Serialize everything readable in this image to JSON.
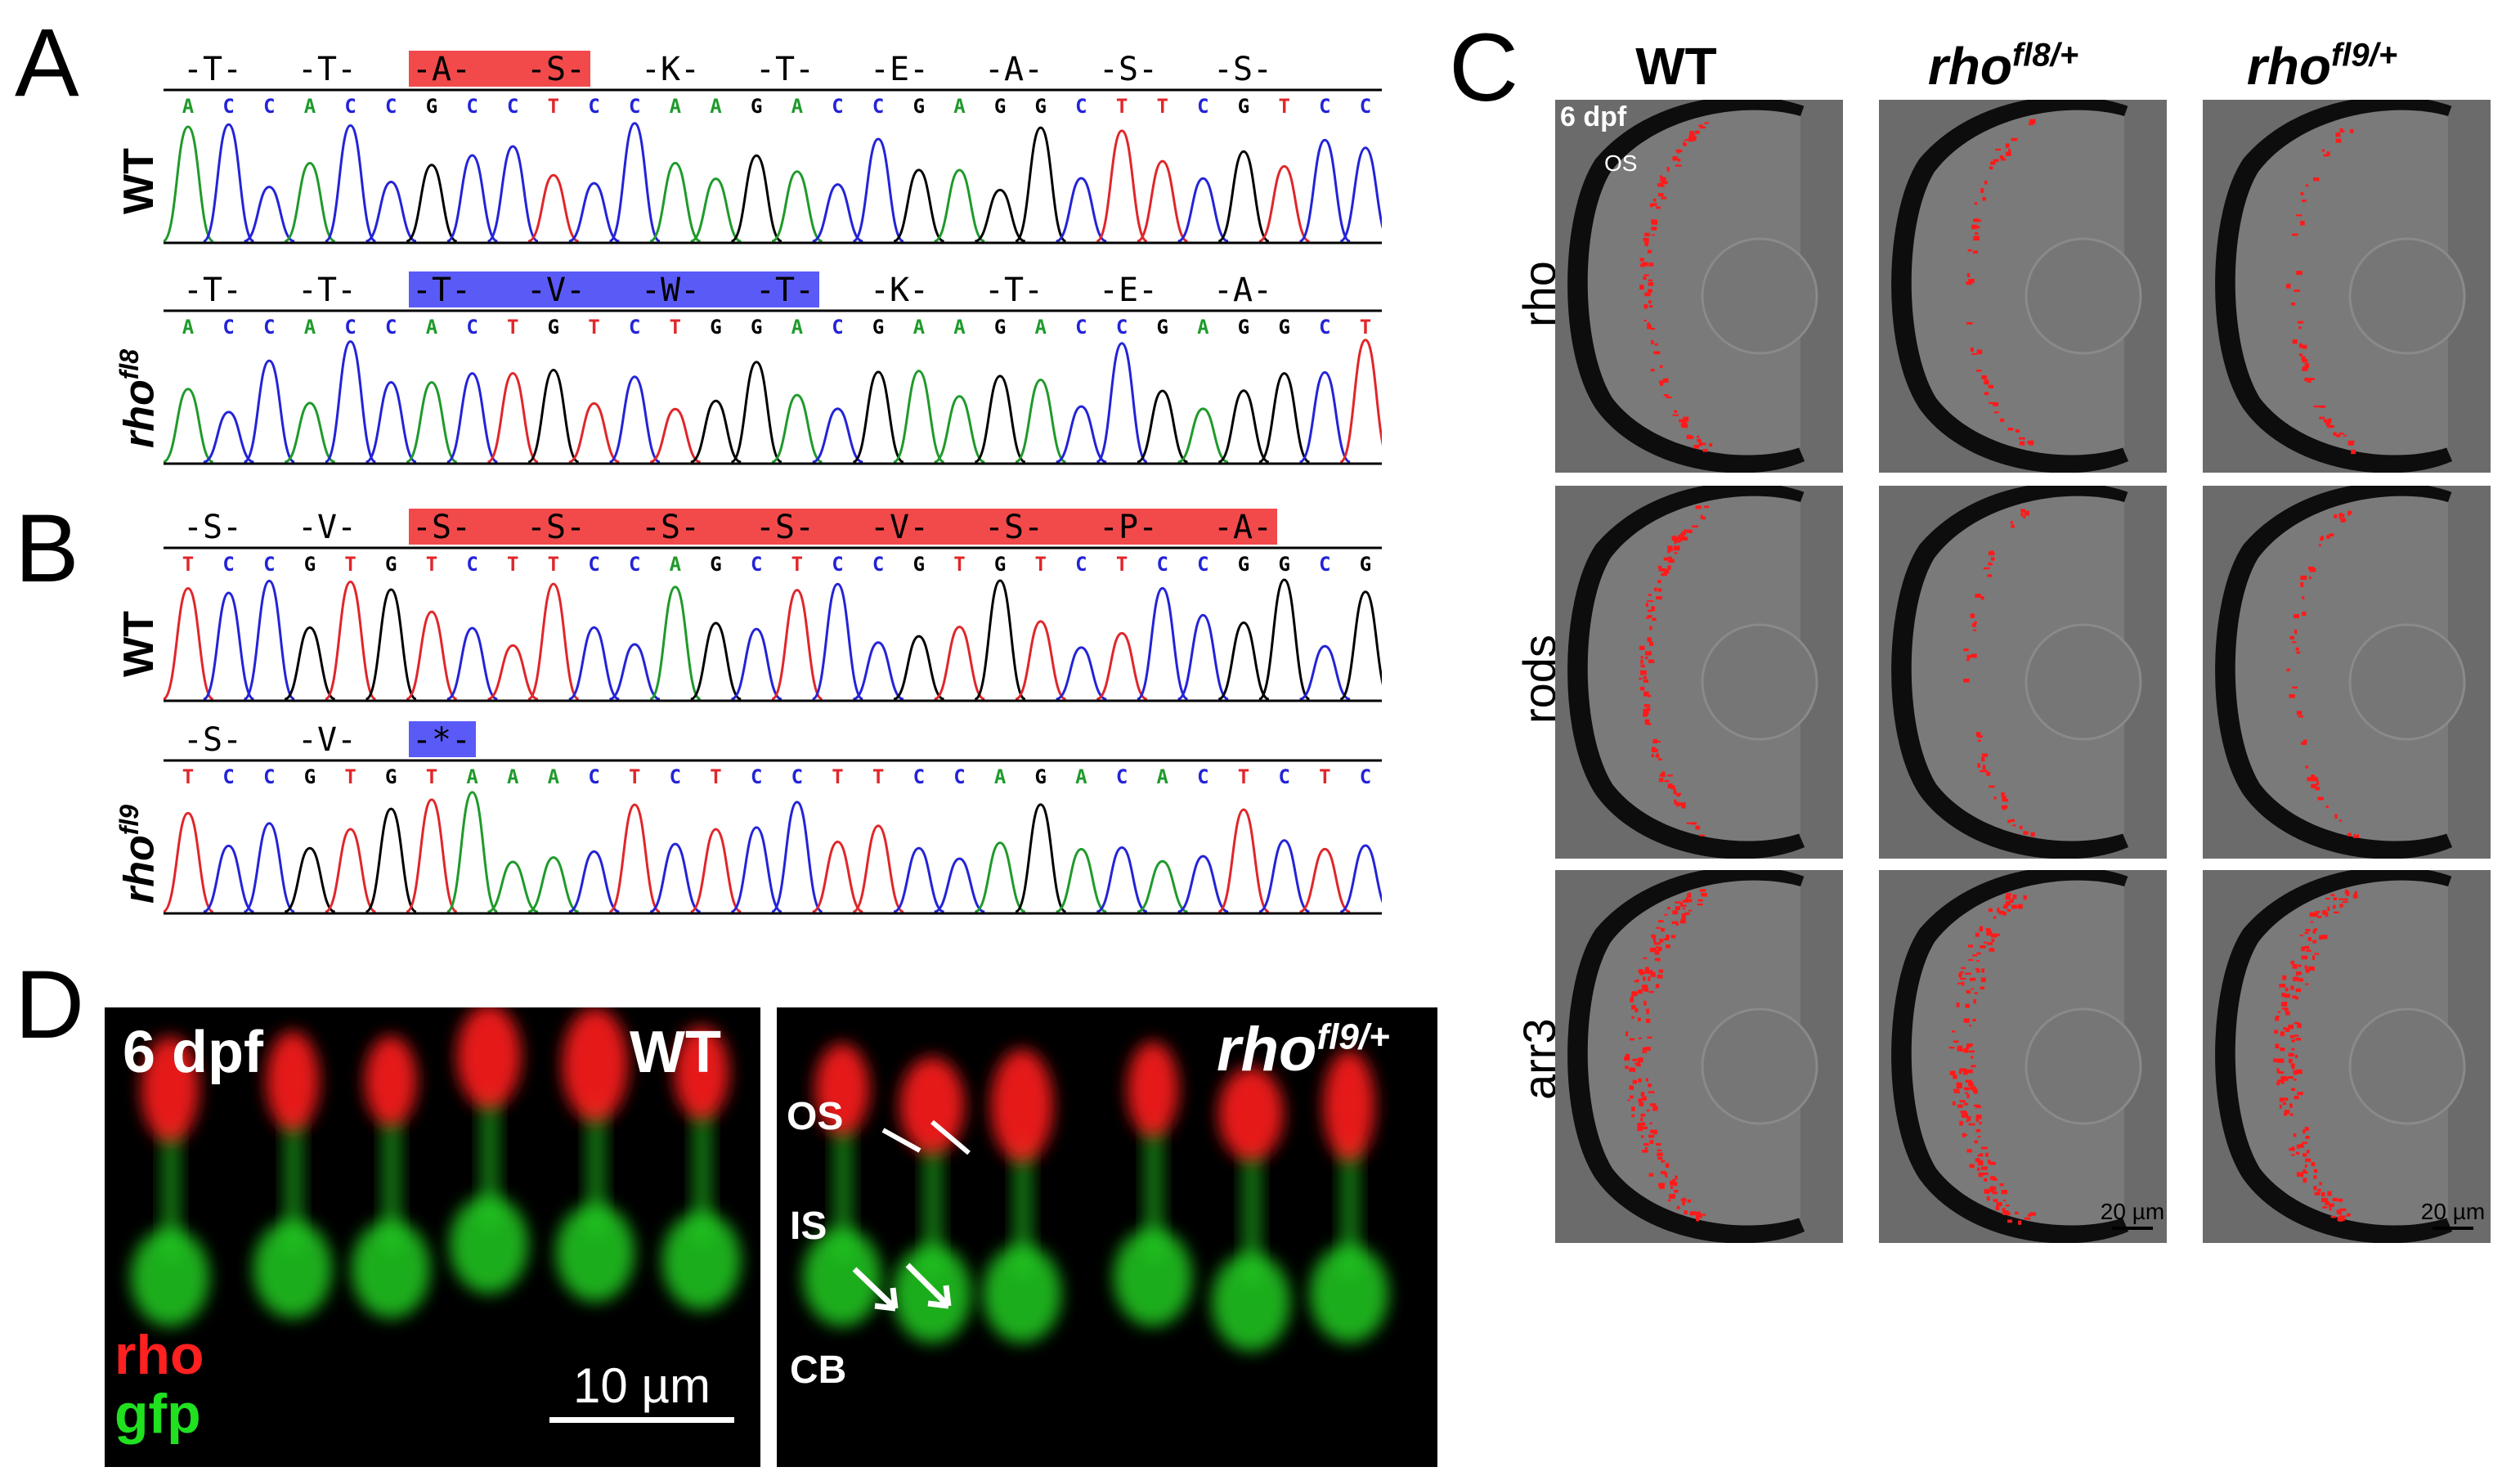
{
  "panels": {
    "A": {
      "letter": "A",
      "wt": {
        "label": "WT",
        "aa": [
          "-T-",
          "-T-",
          "-A-",
          "-S-",
          "-K-",
          "-T-",
          "-E-",
          "-A-",
          "-S-",
          "-S-"
        ],
        "highlight_color": "#f2494b",
        "bases": "ACCACCGCCTCCAAGACCGAGGCTTCGTCC"
      },
      "mut": {
        "label": "rho",
        "label_sup": "fl8",
        "aa": [
          "-T-",
          "-T-",
          "-T-",
          "-V-",
          "-W-",
          "-T-",
          "-K-",
          "-T-",
          "-E-",
          "-A-"
        ],
        "highlight_color": "#5a5af7",
        "bases": "ACCACCACTGTCTGGACGAAGACCGAGGCT"
      }
    },
    "B": {
      "letter": "B",
      "wt": {
        "label": "WT",
        "aa": [
          "-S-",
          "-V-",
          "-S-",
          "-S-",
          "-S-",
          "-S-",
          "-V-",
          "-S-",
          "-P-",
          "-A-"
        ],
        "highlight_color": "#f2494b",
        "bases": "TCCGTGTCTTCCAGCTCCGTGTCTCCGGCG"
      },
      "mut": {
        "label": "rho",
        "label_sup": "fl9",
        "aa": [
          "-S-",
          "-V-",
          "-*-"
        ],
        "highlight_color": "#5a5af7",
        "bases": "TCCGTGTAAACTCTCCTTCCAGACACTCTC"
      }
    },
    "C": {
      "letter": "C",
      "columns": [
        {
          "name": "WT",
          "sup": ""
        },
        {
          "name": "rho",
          "sup": "fl8/+"
        },
        {
          "name": "rho",
          "sup": "fl9/+"
        }
      ],
      "rows": [
        "rho",
        "rods",
        "arr3"
      ],
      "annotations": {
        "age": "6 dpf",
        "layer": "OS"
      },
      "scalebar": "20 µm"
    },
    "D": {
      "letter": "D",
      "left": {
        "age": "6 dpf",
        "genotype": "WT",
        "legend_rho": "rho",
        "legend_gfp": "gfp",
        "scalebar": "10 µm"
      },
      "right": {
        "genotype": "rho",
        "genotype_sup": "fl9/+",
        "layers": [
          "OS",
          "IS",
          "CB"
        ]
      }
    }
  },
  "colors": {
    "base_A": "#1f9a2b",
    "base_C": "#2323d8",
    "base_G": "#000000",
    "base_T": "#e0262a",
    "fluor_red": "#ff1a1a",
    "fluor_green": "#22cc22"
  }
}
